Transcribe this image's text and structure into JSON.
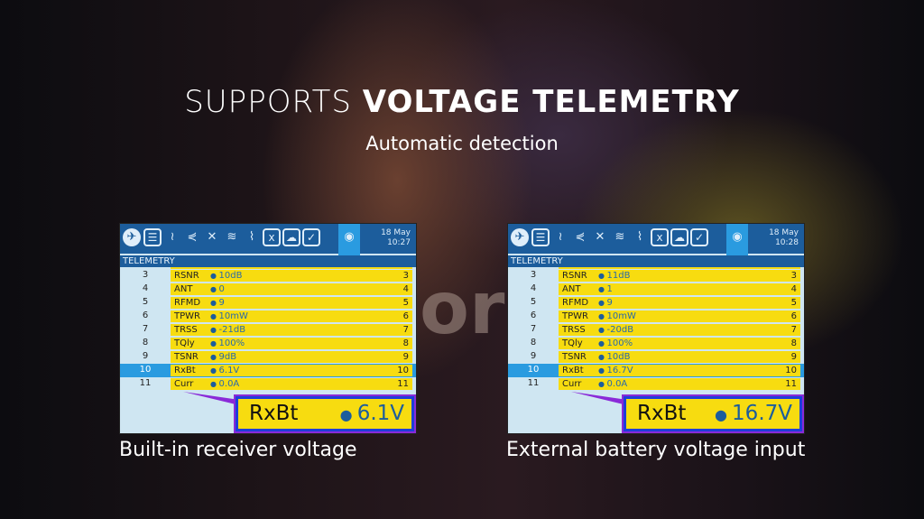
{
  "headline": {
    "light": "SUPPORTS ",
    "bold": "VOLTAGE TELEMETRY"
  },
  "subtitle": "Automatic detection",
  "separator": "or",
  "panels": [
    {
      "caption": "Built-in receiver voltage",
      "date": "18 May",
      "time": "10:27",
      "section": "TELEMETRY",
      "rows": [
        {
          "n": "3",
          "name": "RSNR",
          "value": "10dB"
        },
        {
          "n": "4",
          "name": "ANT",
          "value": "0"
        },
        {
          "n": "5",
          "name": "RFMD",
          "value": "9"
        },
        {
          "n": "6",
          "name": "TPWR",
          "value": "10mW"
        },
        {
          "n": "7",
          "name": "TRSS",
          "value": "-21dB"
        },
        {
          "n": "8",
          "name": "TQly",
          "value": "100%"
        },
        {
          "n": "9",
          "name": "TSNR",
          "value": "9dB"
        },
        {
          "n": "10",
          "name": "RxBt",
          "value": "6.1V"
        },
        {
          "n": "11",
          "name": "Curr",
          "value": "0.0A"
        }
      ],
      "zoom": {
        "name": "RxBt",
        "value": "6.1V"
      }
    },
    {
      "caption": "External battery voltage input",
      "date": "18 May",
      "time": "10:28",
      "section": "TELEMETRY",
      "rows": [
        {
          "n": "3",
          "name": "RSNR",
          "value": "11dB"
        },
        {
          "n": "4",
          "name": "ANT",
          "value": "1"
        },
        {
          "n": "5",
          "name": "RFMD",
          "value": "9"
        },
        {
          "n": "6",
          "name": "TPWR",
          "value": "10mW"
        },
        {
          "n": "7",
          "name": "TRSS",
          "value": "-20dB"
        },
        {
          "n": "8",
          "name": "TQly",
          "value": "100%"
        },
        {
          "n": "9",
          "name": "TSNR",
          "value": "10dB"
        },
        {
          "n": "10",
          "name": "RxBt",
          "value": "16.7V"
        },
        {
          "n": "11",
          "name": "Curr",
          "value": "0.0A"
        }
      ],
      "zoom": {
        "name": "RxBt",
        "value": "16.7V"
      }
    }
  ],
  "toolbar_icons": [
    "airplane-icon",
    "list-icon",
    "sound-icon",
    "mixer-icon",
    "outputs-icon",
    "curves-icon",
    "logical-switch-icon",
    "special-function-icon",
    "lua-script-icon",
    "checklist-icon",
    "telemetry-icon"
  ],
  "colors": {
    "header": "#1c5d9c",
    "highlight": "#2a9be0",
    "row": "#f7dc10",
    "border": "#1e3fd8"
  }
}
